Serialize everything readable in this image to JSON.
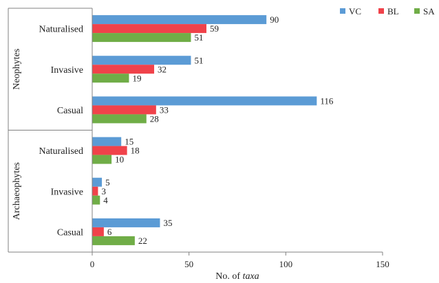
{
  "chart_data": {
    "type": "bar",
    "orientation": "horizontal",
    "title": "",
    "xlabel": "No. of taxa",
    "xlabel_parts": [
      {
        "text": "No. of ",
        "italic": false
      },
      {
        "text": "taxa",
        "italic": true
      }
    ],
    "ylabel": "",
    "xlim": [
      0,
      150
    ],
    "xticks": [
      0,
      50,
      100,
      150
    ],
    "grid": false,
    "legend_position": "top-right",
    "groups": [
      {
        "label": "Neophytes",
        "categories": [
          "Naturalised",
          "Invasive",
          "Casual"
        ]
      },
      {
        "label": "Archaeophytes",
        "categories": [
          "Naturalised",
          "Invasive",
          "Casual"
        ]
      }
    ],
    "series": [
      {
        "name": "VC",
        "color": "#5b9bd5",
        "values": [
          90,
          51,
          116,
          15,
          5,
          35
        ]
      },
      {
        "name": "BL",
        "color": "#f0424a",
        "values": [
          59,
          32,
          33,
          18,
          3,
          6
        ]
      },
      {
        "name": "SA",
        "color": "#70ad47",
        "values": [
          51,
          19,
          28,
          10,
          4,
          22
        ]
      }
    ]
  }
}
